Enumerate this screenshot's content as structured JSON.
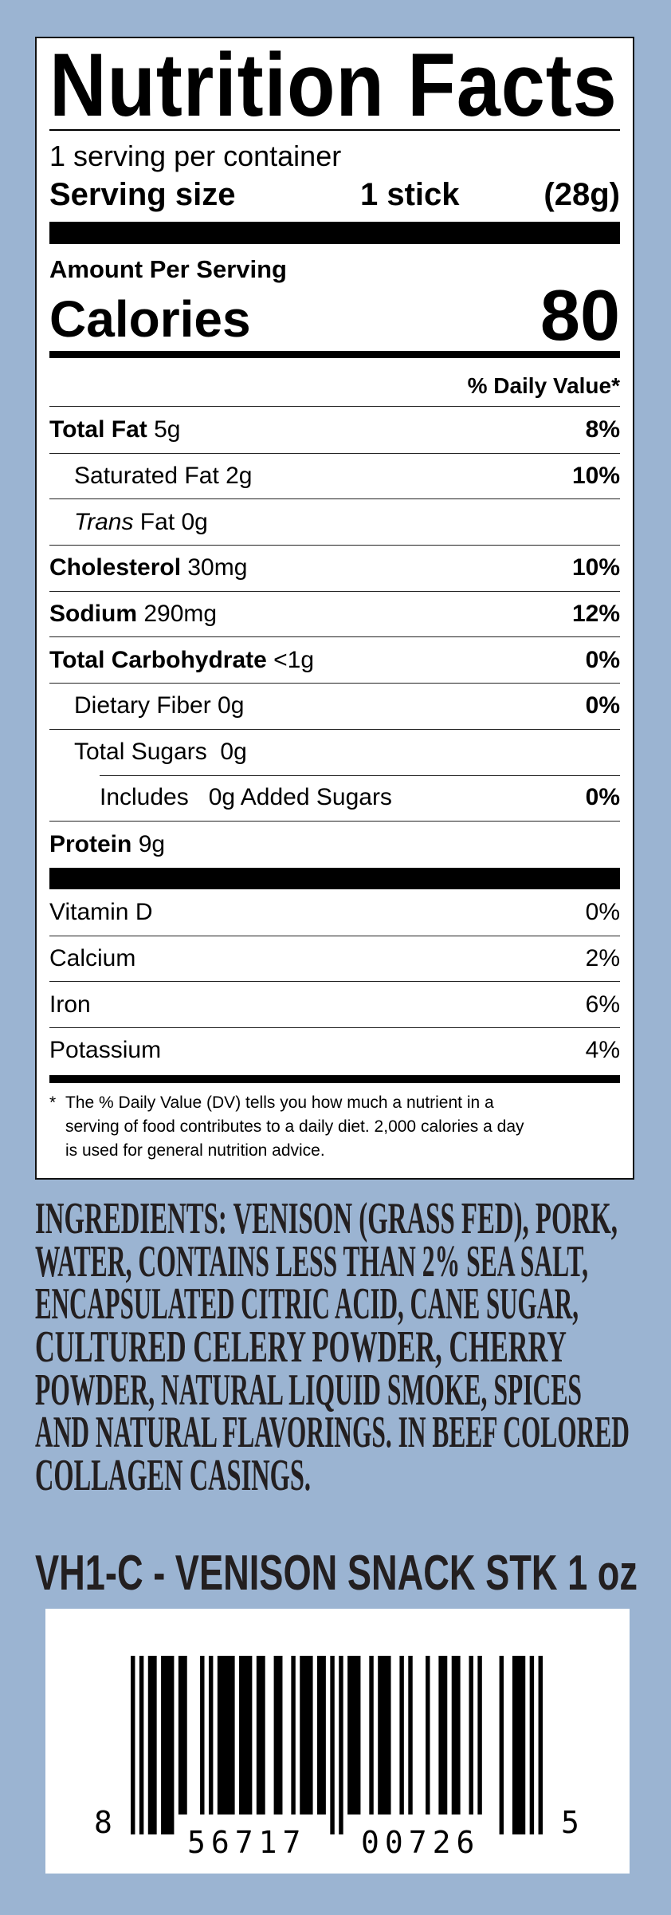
{
  "colors": {
    "background": "#9bb4d2",
    "ingredients_text": "#231f20",
    "label_bg": "#ffffff"
  },
  "nutrition": {
    "title": "Nutrition Facts",
    "servings_per_container": "1   serving per container",
    "serving_size_label": "Serving size",
    "serving_size_amount": "1 stick",
    "serving_size_grams": "(28g)",
    "amount_per_serving": "Amount Per Serving",
    "calories_label": "Calories",
    "calories_value": "80",
    "daily_value_header": "% Daily Value*",
    "nutrients": [
      {
        "name": "Total Fat",
        "amount": " 5g",
        "dv": "8%"
      },
      {
        "name": "Saturated Fat 2g",
        "amount": "",
        "dv": "10%"
      },
      {
        "name": "Trans",
        "amount": " Fat 0g",
        "dv": ""
      },
      {
        "name": "Cholesterol",
        "amount": " 30mg",
        "dv": "10%"
      },
      {
        "name": "Sodium",
        "amount": " 290mg",
        "dv": "12%"
      },
      {
        "name": "Total Carbohydrate",
        "amount": " <1g",
        "dv": "0%"
      },
      {
        "name": "Dietary Fiber 0g",
        "amount": "",
        "dv": "0%"
      },
      {
        "name": "Total Sugars  0g",
        "amount": "",
        "dv": ""
      },
      {
        "name": "Includes   0g Added Sugars",
        "amount": "",
        "dv": "0%"
      },
      {
        "name": "Protein",
        "amount": " 9g",
        "dv": ""
      }
    ],
    "vitamins": [
      {
        "name": "Vitamin D",
        "dv": "0%"
      },
      {
        "name": "Calcium",
        "dv": "2%"
      },
      {
        "name": "Iron",
        "dv": "6%"
      },
      {
        "name": "Potassium",
        "dv": "4%"
      }
    ],
    "footnote_star": "*",
    "footnote_lines": [
      "The % Daily Value (DV) tells you how much a nutrient in a",
      "serving of food contributes to a daily diet. 2,000 calories a day",
      "is used for general nutrition advice."
    ]
  },
  "ingredients": {
    "lines": [
      "INGREDIENTS:  VENISON (GRASS FED), PORK,",
      "WATER, CONTAINS LESS THAN 2% SEA SALT,",
      "ENCAPSULATED CITRIC ACID, CANE SUGAR,",
      "CULTURED CELERY POWDER, CHERRY",
      "POWDER, NATURAL LIQUID SMOKE, SPICES",
      "AND NATURAL FLAVORINGS. IN BEEF COLORED",
      "COLLAGEN CASINGS."
    ]
  },
  "product_title": "VH1-C - VENISON SNACK STK 1 oz",
  "barcode": {
    "type": "UPC-A",
    "digits": "856717007265",
    "left_digit": "8",
    "left_group": "56717",
    "right_group": "00726",
    "check_digit": "5"
  }
}
